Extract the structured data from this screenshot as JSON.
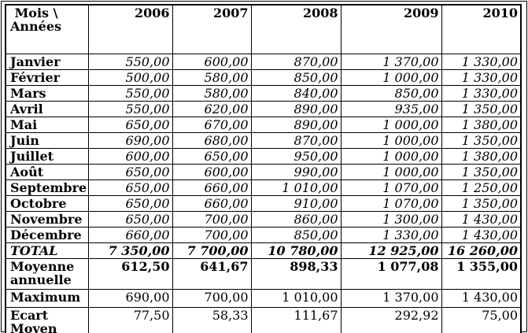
{
  "table": {
    "corner_label": " Mois \\\nAnnées",
    "years": [
      "2006",
      "2007",
      "2008",
      "2009",
      "2010"
    ],
    "rows": [
      {
        "label": "Janvier",
        "style": "month",
        "values": [
          "550,00",
          "600,00",
          "870,00",
          "1 370,00",
          "1 330,00"
        ]
      },
      {
        "label": "Février",
        "style": "month",
        "values": [
          "500,00",
          "580,00",
          "850,00",
          "1 000,00",
          "1 330,00"
        ]
      },
      {
        "label": "Mars",
        "style": "month",
        "values": [
          "550,00",
          "580,00",
          "840,00",
          "850,00",
          "1 330,00"
        ]
      },
      {
        "label": "Avril",
        "style": "month",
        "values": [
          "550,00",
          "620,00",
          "890,00",
          "935,00",
          "1 350,00"
        ]
      },
      {
        "label": "Mai",
        "style": "month",
        "values": [
          "650,00",
          "670,00",
          "890,00",
          "1 000,00",
          "1 380,00"
        ]
      },
      {
        "label": "Juin",
        "style": "month",
        "values": [
          "690,00",
          "680,00",
          "870,00",
          "1 000,00",
          "1 350,00"
        ]
      },
      {
        "label": "Juillet",
        "style": "month",
        "values": [
          "600,00",
          "650,00",
          "950,00",
          "1 000,00",
          "1 380,00"
        ]
      },
      {
        "label": "Août",
        "style": "month",
        "values": [
          "650,00",
          "600,00",
          "990,00",
          "1 000,00",
          "1 350,00"
        ]
      },
      {
        "label": "Septembre",
        "style": "month",
        "values": [
          "650,00",
          "660,00",
          "1 010,00",
          "1 070,00",
          "1 250,00"
        ]
      },
      {
        "label": "Octobre",
        "style": "month",
        "values": [
          "650,00",
          "660,00",
          "910,00",
          "1 070,00",
          "1 350,00"
        ]
      },
      {
        "label": "Novembre",
        "style": "month",
        "values": [
          "650,00",
          "700,00",
          "860,00",
          "1 300,00",
          "1 430,00"
        ]
      },
      {
        "label": "Décembre",
        "style": "month",
        "values": [
          "660,00",
          "700,00",
          "850,00",
          "1 330,00",
          "1 430,00"
        ]
      },
      {
        "label": "TOTAL",
        "style": "total",
        "values": [
          "7 350,00",
          "7 700,00",
          "10 780,00",
          "12 925,00",
          "16 260,00"
        ]
      },
      {
        "label": "Moyenne\nannuelle",
        "style": "average",
        "values": [
          "612,50",
          "641,67",
          "898,33",
          "1 077,08",
          "1 355,00"
        ]
      },
      {
        "label": "Maximum",
        "style": "maximum",
        "values": [
          "690,00",
          "700,00",
          "1 010,00",
          "1 370,00",
          "1 430,00"
        ]
      },
      {
        "label": "Ecart\nMoyen",
        "style": "ecart",
        "values": [
          "77,50",
          "58,33",
          "111,67",
          "292,92",
          "75,00"
        ]
      }
    ]
  }
}
